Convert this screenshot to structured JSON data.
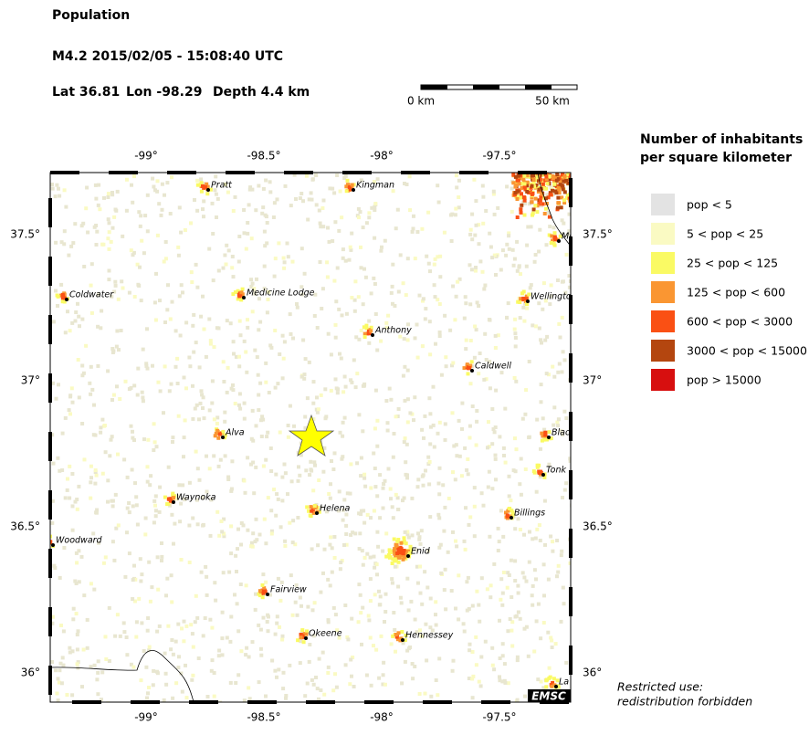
{
  "header": {
    "title": "Population",
    "event": "M4.2  2015/02/05 - 15:08:40 UTC",
    "lat": "Lat 36.81",
    "lon": "Lon -98.29",
    "depth": "Depth  4.4 km"
  },
  "scale_bar": {
    "start": "0 km",
    "end": "50 km"
  },
  "legend": {
    "title_lines": [
      "Number of inhabitants",
      "per square kilometer"
    ],
    "entries": [
      {
        "label": "pop < 5",
        "color": "#e3e3e3"
      },
      {
        "label": "5 < pop < 25",
        "color": "#fafac3"
      },
      {
        "label": "25 < pop < 125",
        "color": "#fafa64"
      },
      {
        "label": "125 < pop < 600",
        "color": "#fa9632"
      },
      {
        "label": "600 < pop < 3000",
        "color": "#fa5014"
      },
      {
        "label": "3000 < pop < 15000",
        "color": "#b4460f"
      },
      {
        "label": "pop > 15000",
        "color": "#d70f0f"
      }
    ]
  },
  "map": {
    "lon_labels": [
      "-99°",
      "-98.5°",
      "-98°",
      "-97.5°"
    ],
    "lat_labels": [
      "37.5°",
      "37°",
      "36.5°",
      "36°"
    ],
    "cities": [
      "Pratt",
      "Kingman",
      "Coldwater",
      "Medicine Lodge",
      "Anthony",
      "Caldwell",
      "Wellingto",
      "Mu",
      "Alva",
      "Blac",
      "Tonk",
      "Waynoka",
      "Helena",
      "Billings",
      "Woodward",
      "Enid",
      "Fairview",
      "Okeene",
      "Hennessey",
      "La"
    ],
    "badge": "EMSC"
  },
  "footer": {
    "lines": [
      "Restricted use:",
      "redistribution forbidden"
    ]
  }
}
